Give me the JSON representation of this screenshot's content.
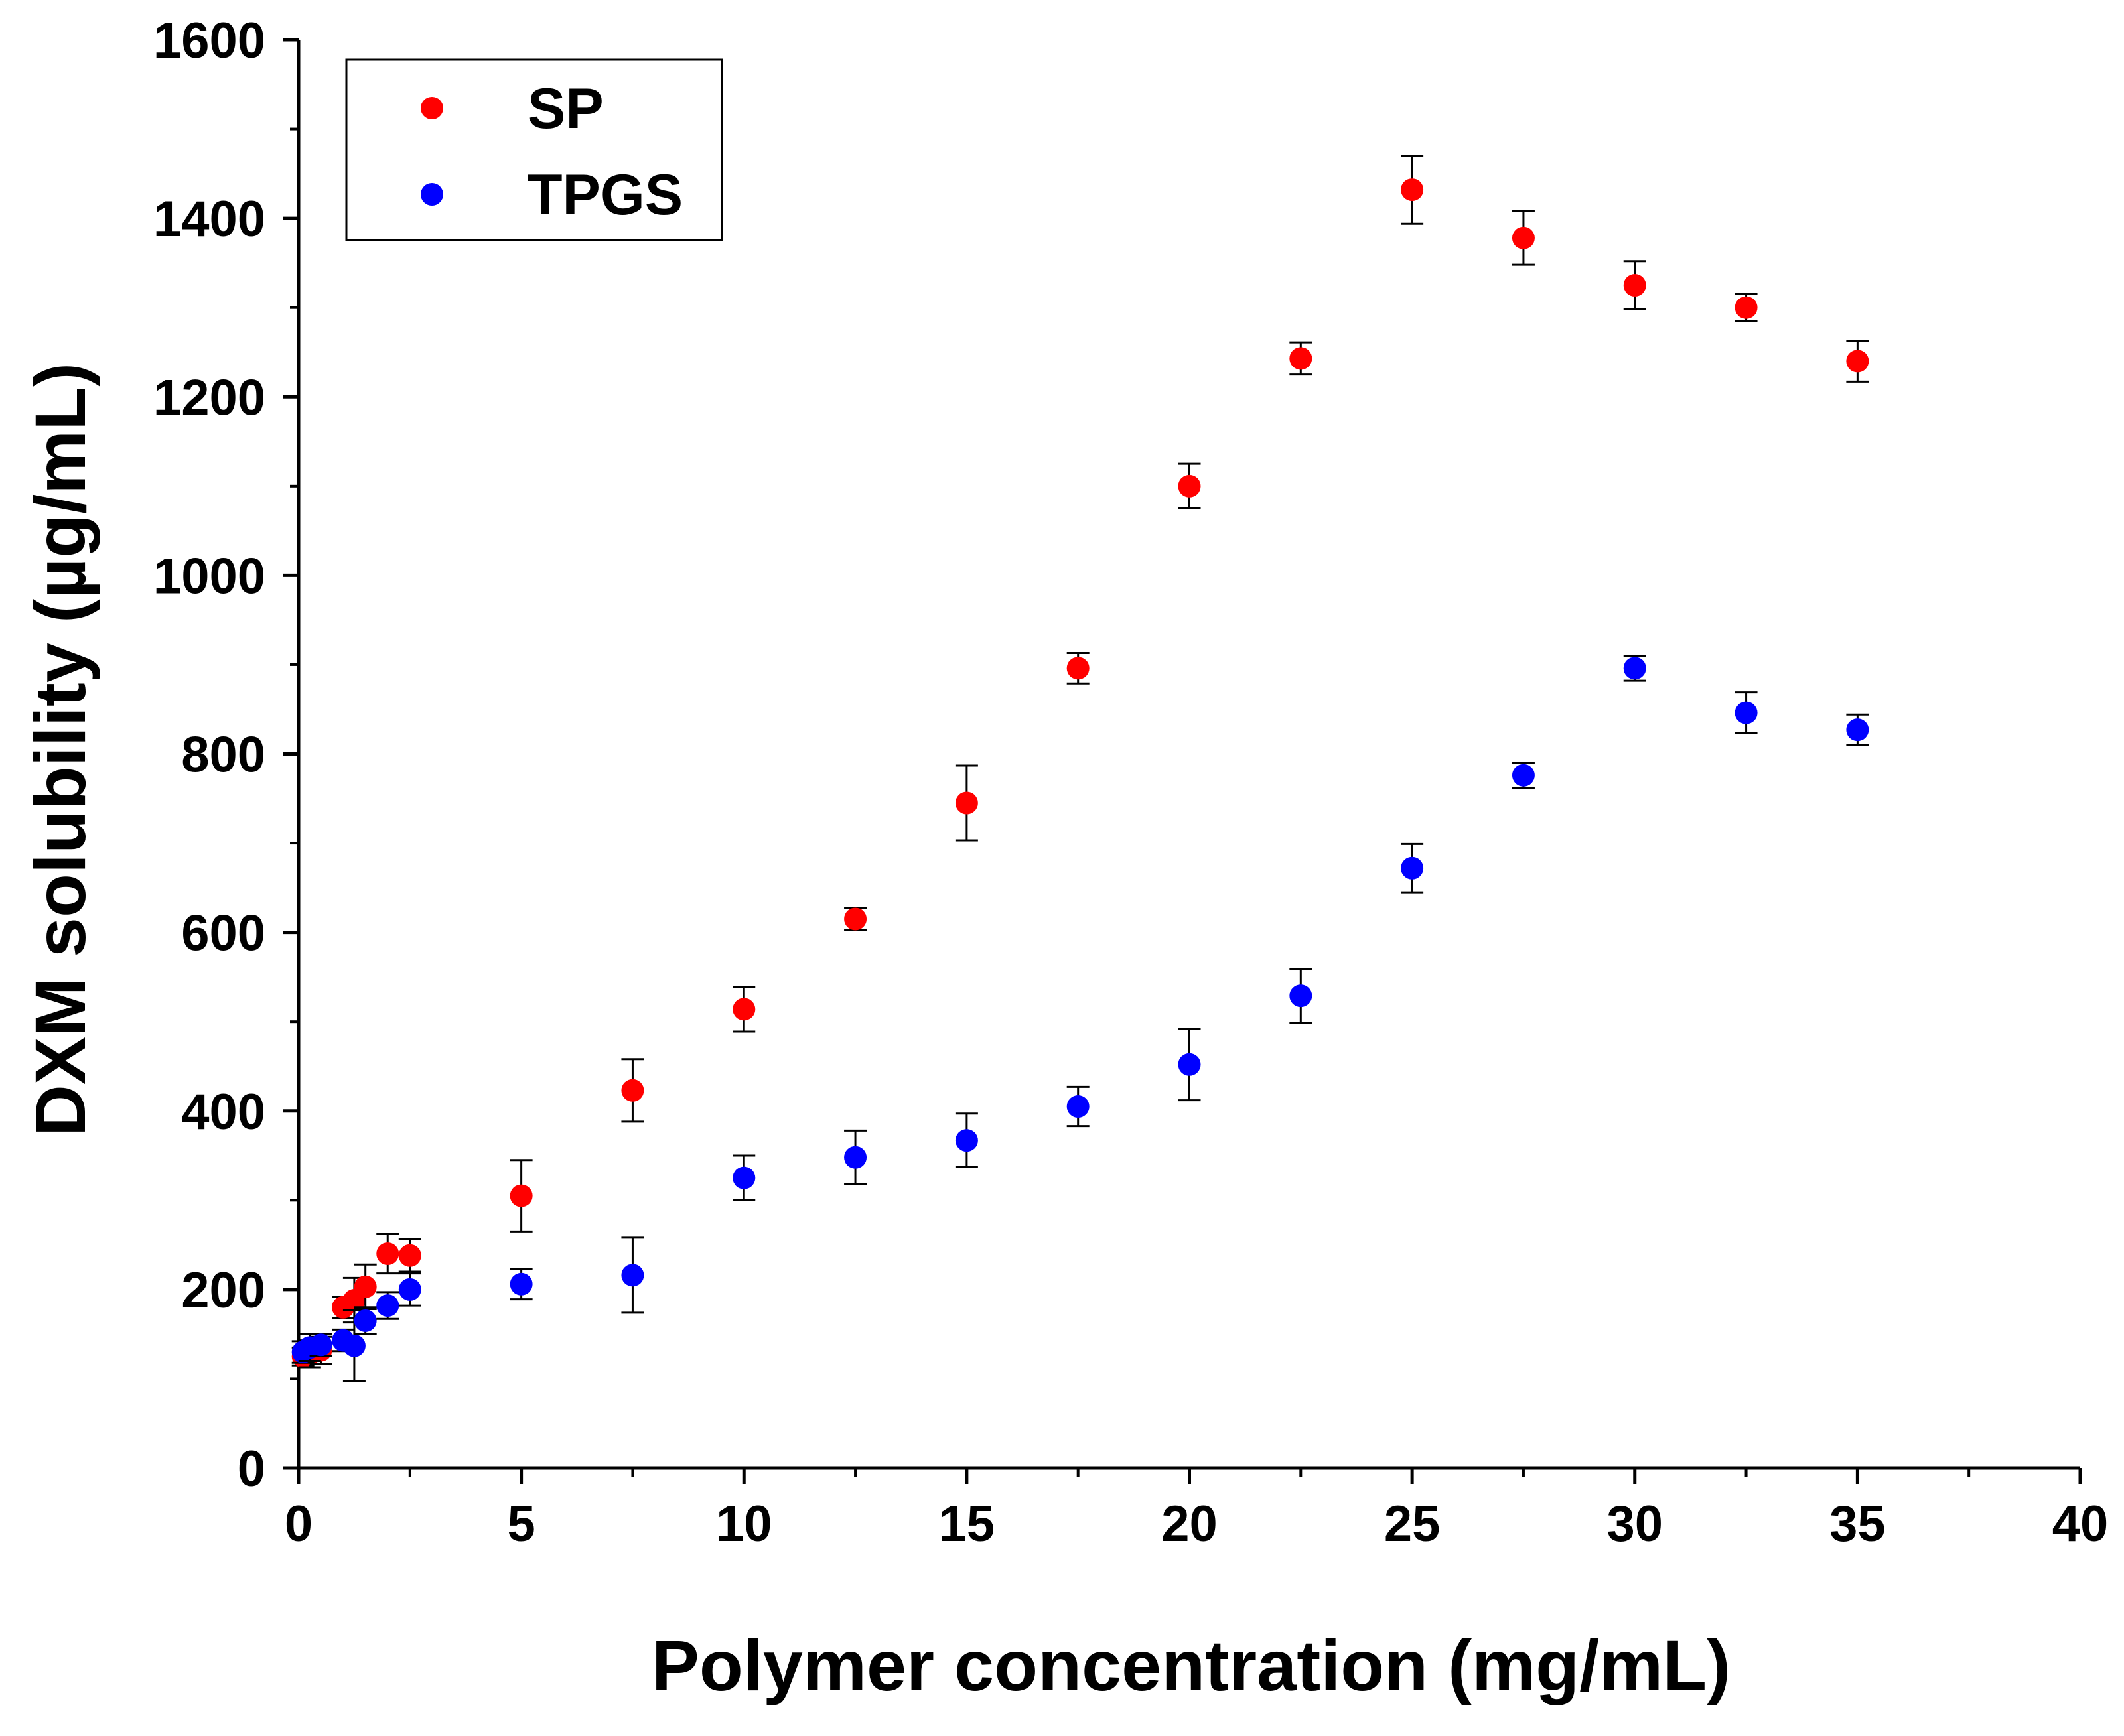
{
  "chart_data": {
    "type": "scatter",
    "title": "",
    "xlabel": "Polymer concentration (mg/mL)",
    "ylabel": "DXM solubility (µg/mL)",
    "xlim": [
      0,
      40
    ],
    "ylim": [
      0,
      1600
    ],
    "xticks": [
      0,
      5,
      10,
      15,
      20,
      25,
      30,
      35,
      40
    ],
    "yticks": [
      0,
      200,
      400,
      600,
      800,
      1000,
      1200,
      1400,
      1600
    ],
    "xtick_labels": [
      "0",
      "5",
      "10",
      "15",
      "20",
      "25",
      "30",
      "35",
      "40"
    ],
    "ytick_labels": [
      "0",
      "200",
      "400",
      "600",
      "800",
      "1000",
      "1200",
      "1400",
      "1600"
    ],
    "grid": false,
    "legend_position": "top-left",
    "series": [
      {
        "name": "SP",
        "color": "#ff0000",
        "points": [
          {
            "x": 0.1,
            "y": 125,
            "err": 10
          },
          {
            "x": 0.25,
            "y": 128,
            "err": 15
          },
          {
            "x": 0.5,
            "y": 132,
            "err": 15
          },
          {
            "x": 1.0,
            "y": 180,
            "err": 12
          },
          {
            "x": 1.25,
            "y": 188,
            "err": 25
          },
          {
            "x": 1.5,
            "y": 203,
            "err": 25
          },
          {
            "x": 2.0,
            "y": 240,
            "err": 22
          },
          {
            "x": 2.5,
            "y": 238,
            "err": 18
          },
          {
            "x": 5,
            "y": 305,
            "err": 40
          },
          {
            "x": 7.5,
            "y": 423,
            "err": 35
          },
          {
            "x": 10,
            "y": 514,
            "err": 25
          },
          {
            "x": 12.5,
            "y": 615,
            "err": 12
          },
          {
            "x": 15,
            "y": 745,
            "err": 42
          },
          {
            "x": 17.5,
            "y": 896,
            "err": 17
          },
          {
            "x": 20,
            "y": 1100,
            "err": 25
          },
          {
            "x": 22.5,
            "y": 1243,
            "err": 18
          },
          {
            "x": 25,
            "y": 1432,
            "err": 38
          },
          {
            "x": 27.5,
            "y": 1378,
            "err": 30
          },
          {
            "x": 30,
            "y": 1325,
            "err": 27
          },
          {
            "x": 32.5,
            "y": 1300,
            "err": 15
          },
          {
            "x": 35,
            "y": 1240,
            "err": 23
          }
        ]
      },
      {
        "name": "TPGS",
        "color": "#0000ff",
        "points": [
          {
            "x": 0.1,
            "y": 130,
            "err": 12
          },
          {
            "x": 0.25,
            "y": 135,
            "err": 15
          },
          {
            "x": 0.5,
            "y": 138,
            "err": 12
          },
          {
            "x": 1.0,
            "y": 143,
            "err": 12
          },
          {
            "x": 1.25,
            "y": 137,
            "err": 40
          },
          {
            "x": 1.5,
            "y": 165,
            "err": 15
          },
          {
            "x": 2.0,
            "y": 182,
            "err": 15
          },
          {
            "x": 2.5,
            "y": 200,
            "err": 18
          },
          {
            "x": 5,
            "y": 206,
            "err": 17
          },
          {
            "x": 7.5,
            "y": 216,
            "err": 42
          },
          {
            "x": 10,
            "y": 325,
            "err": 25
          },
          {
            "x": 12.5,
            "y": 348,
            "err": 30
          },
          {
            "x": 15,
            "y": 367,
            "err": 30
          },
          {
            "x": 17.5,
            "y": 405,
            "err": 22
          },
          {
            "x": 20,
            "y": 452,
            "err": 40
          },
          {
            "x": 22.5,
            "y": 529,
            "err": 30
          },
          {
            "x": 25,
            "y": 672,
            "err": 27
          },
          {
            "x": 27.5,
            "y": 776,
            "err": 14
          },
          {
            "x": 30,
            "y": 896,
            "err": 14
          },
          {
            "x": 32.5,
            "y": 846,
            "err": 23
          },
          {
            "x": 35,
            "y": 827,
            "err": 17
          }
        ]
      }
    ]
  }
}
